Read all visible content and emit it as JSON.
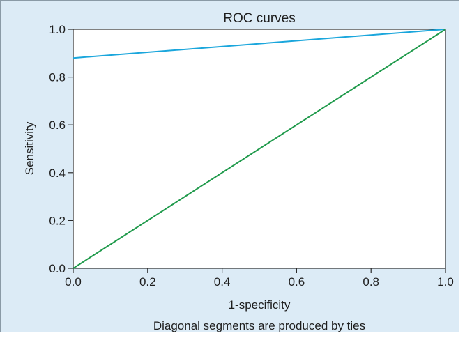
{
  "chart_data": {
    "type": "line",
    "title": "ROC curves",
    "xlabel": "1-specificity",
    "ylabel": "Sensitivity",
    "footnote": "Diagonal segments are produced by ties",
    "xlim": [
      0.0,
      1.0
    ],
    "ylim": [
      0.0,
      1.0
    ],
    "x_ticks": [
      "0.0",
      "0.2",
      "0.4",
      "0.6",
      "0.8",
      "1.0"
    ],
    "y_ticks": [
      "0.0",
      "0.2",
      "0.4",
      "0.6",
      "0.8",
      "1.0"
    ],
    "grid": false,
    "series": [
      {
        "color": "#1aa6dc",
        "x": [
          0.0,
          1.0
        ],
        "y": [
          0.88,
          1.0
        ]
      },
      {
        "color": "#1f9a4b",
        "x": [
          0.0,
          1.0
        ],
        "y": [
          0.0,
          1.0
        ]
      }
    ]
  }
}
